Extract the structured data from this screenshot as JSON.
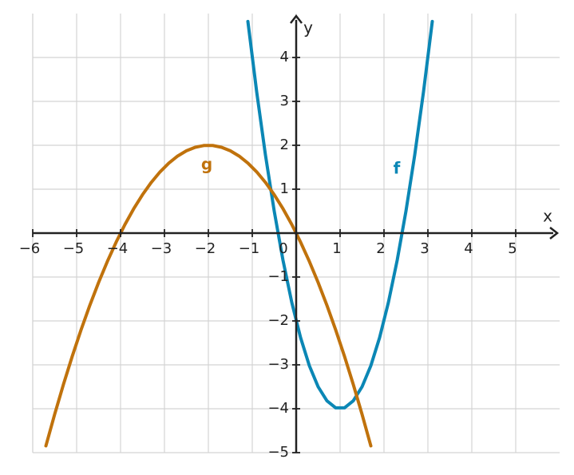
{
  "chart_data": {
    "type": "line",
    "x_label": "x",
    "y_label": "y",
    "xlim": [
      -6,
      6
    ],
    "ylim": [
      -5,
      5
    ],
    "xticks": [
      {
        "value": -6,
        "label": "−6"
      },
      {
        "value": -5,
        "label": "−5"
      },
      {
        "value": -4,
        "label": "−4"
      },
      {
        "value": -3,
        "label": "−3"
      },
      {
        "value": -2,
        "label": "−2"
      },
      {
        "value": -1,
        "label": "−1"
      },
      0,
      1,
      2,
      3,
      4,
      5
    ],
    "yticks": [
      {
        "value": -5,
        "label": "−5"
      },
      {
        "value": -4,
        "label": "−4"
      },
      {
        "value": -3,
        "label": "−3"
      },
      {
        "value": -2,
        "label": "−2"
      },
      {
        "value": -1,
        "label": "−1"
      },
      1,
      2,
      3,
      4
    ],
    "grid": true,
    "series": [
      {
        "name": "f",
        "color": "#0b87b5",
        "x": [
          -1.1,
          -0.9,
          -0.7,
          -0.5,
          -0.3,
          -0.1,
          0.1,
          0.3,
          0.5,
          0.7,
          0.9,
          1.1,
          1.3,
          1.5,
          1.7,
          1.9,
          2.1,
          2.3,
          2.5,
          2.7,
          2.9,
          3.1
        ],
        "values": [
          4.82,
          3.22,
          1.78,
          0.5,
          -0.62,
          -1.58,
          -2.38,
          -3.02,
          -3.5,
          -3.82,
          -3.98,
          -3.98,
          -3.82,
          -3.5,
          -3.02,
          -2.38,
          -1.58,
          -0.62,
          0.5,
          1.78,
          3.22,
          4.82
        ]
      },
      {
        "name": "g",
        "color": "#c0720c",
        "x": [
          -5.7,
          -5.5,
          -5.3,
          -5.1,
          -4.9,
          -4.7,
          -4.5,
          -4.3,
          -4.1,
          -3.9,
          -3.7,
          -3.5,
          -3.3,
          -3.1,
          -2.9,
          -2.7,
          -2.5,
          -2.3,
          -2.1,
          -1.9,
          -1.7,
          -1.5,
          -1.3,
          -1.1,
          -0.9,
          -0.7,
          -0.5,
          -0.3,
          -0.1,
          0.1,
          0.3,
          0.5,
          0.7,
          0.9,
          1.1,
          1.3,
          1.5,
          1.7
        ],
        "values": [
          -4.845,
          -4.125,
          -3.445,
          -2.805,
          -2.205,
          -1.645,
          -1.125,
          -0.645,
          -0.205,
          0.195,
          0.555,
          0.875,
          1.155,
          1.395,
          1.595,
          1.755,
          1.875,
          1.955,
          1.995,
          1.995,
          1.955,
          1.875,
          1.755,
          1.595,
          1.395,
          1.155,
          0.875,
          0.555,
          0.195,
          -0.205,
          -0.645,
          -1.125,
          -1.645,
          -2.205,
          -2.805,
          -3.445,
          -4.125,
          -4.845
        ]
      }
    ]
  }
}
